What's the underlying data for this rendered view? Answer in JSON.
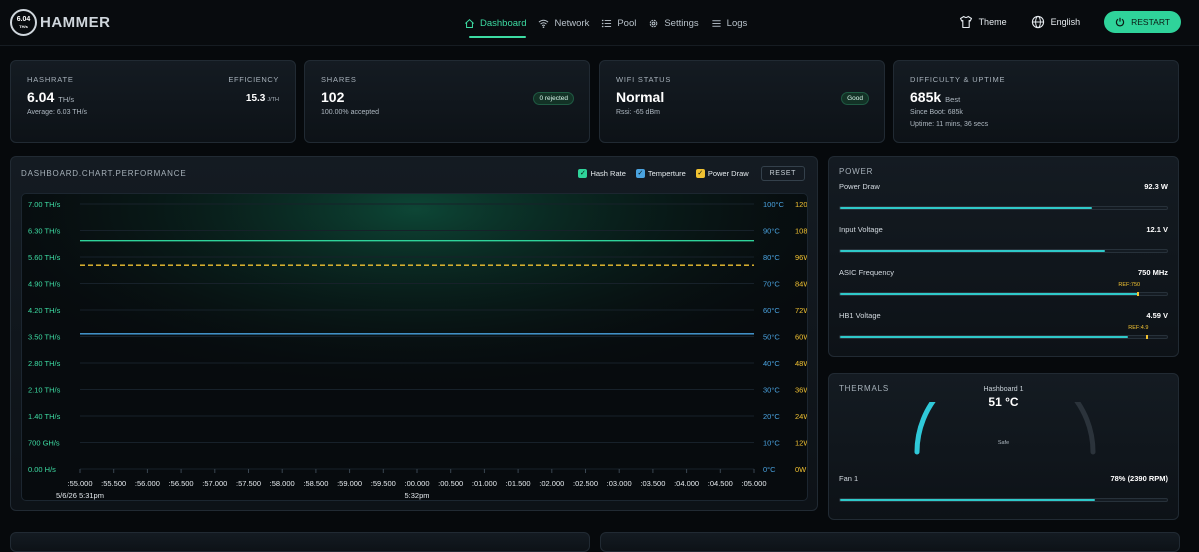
{
  "brand": {
    "name": "HAMMER",
    "badge_value": "6.04",
    "badge_unit": "TH/s"
  },
  "nav": [
    {
      "label": "Dashboard",
      "icon": "home-icon",
      "active": true
    },
    {
      "label": "Network",
      "icon": "wifi-icon",
      "active": false
    },
    {
      "label": "Pool",
      "icon": "list-icon",
      "active": false
    },
    {
      "label": "Settings",
      "icon": "gear-icon",
      "active": false
    },
    {
      "label": "Logs",
      "icon": "menu-icon",
      "active": false
    }
  ],
  "topbar": {
    "theme_label": "Theme",
    "language_label": "English",
    "restart_label": "RESTART"
  },
  "stats": {
    "hashrate": {
      "title": "HASHRATE",
      "value": "6.04",
      "unit": "TH/s",
      "average": "Average: 6.03 TH/s",
      "efficiency_label": "EFFICIENCY",
      "efficiency_value": "15.3",
      "efficiency_unit": "J/TH"
    },
    "shares": {
      "title": "SHARES",
      "value": "102",
      "badge": "0 rejected",
      "sub": "100.00% accepted"
    },
    "wifi": {
      "title": "WIFI STATUS",
      "value": "Normal",
      "badge": "Good",
      "sub": "Rssi: -65 dBm"
    },
    "difficulty": {
      "title": "DIFFICULTY & UPTIME",
      "value": "685k",
      "unit": "Best",
      "since_boot": "Since Boot: 685k",
      "uptime": "Uptime: 11 mins, 36 secs"
    }
  },
  "chart": {
    "title": "DASHBOARD.CHART.PERFORMANCE",
    "legend": [
      {
        "label": "Hash Rate",
        "color": "#2fd39a"
      },
      {
        "label": "Temperture",
        "color": "#4aa3e0"
      },
      {
        "label": "Power Draw",
        "color": "#f1c232"
      }
    ],
    "reset_label": "RESET"
  },
  "chart_data": {
    "type": "line",
    "y_left_ticks": [
      "7.00 TH/s",
      "6.30 TH/s",
      "5.60 TH/s",
      "4.90 TH/s",
      "4.20 TH/s",
      "3.50 TH/s",
      "2.80 TH/s",
      "2.10 TH/s",
      "1.40 TH/s",
      "700 GH/s",
      "0.00 H/s"
    ],
    "y_temp_ticks": [
      "100°C",
      "90°C",
      "80°C",
      "70°C",
      "60°C",
      "50°C",
      "40°C",
      "30°C",
      "20°C",
      "10°C",
      "0°C"
    ],
    "y_power_ticks": [
      "120W",
      "108W",
      "96W",
      "84W",
      "72W",
      "60W",
      "48W",
      "36W",
      "24W",
      "12W",
      "0W"
    ],
    "x_ticks": [
      ":55.000",
      ":55.500",
      ":56.000",
      ":56.500",
      ":57.000",
      ":57.500",
      ":58.000",
      ":58.500",
      ":59.000",
      ":59.500",
      ":00.000",
      ":00.500",
      ":01.000",
      ":01.500",
      ":02.000",
      ":02.500",
      ":03.000",
      ":03.500",
      ":04.000",
      ":04.500",
      ":05.000"
    ],
    "x_date_labels": [
      {
        "at": 0,
        "text": "5/6/26 5:31pm"
      },
      {
        "at": 10,
        "text": "5:32pm"
      }
    ],
    "ylim_hashrate": [
      0,
      7.0
    ],
    "ylim_temp": [
      0,
      100
    ],
    "ylim_power": [
      0,
      120
    ],
    "series": [
      {
        "name": "Hash Rate",
        "axis": "hashrate",
        "values": [
          6.03,
          6.03
        ],
        "style": "solid",
        "color": "#2fd39a"
      },
      {
        "name": "Temperture",
        "axis": "temp",
        "values": [
          51,
          51
        ],
        "style": "solid",
        "color": "#4aa3e0"
      },
      {
        "name": "Power Draw",
        "axis": "power",
        "values": [
          92.3,
          92.3
        ],
        "style": "dashed",
        "color": "#f1c232"
      }
    ]
  },
  "power": {
    "title": "POWER",
    "rows": [
      {
        "label": "Power Draw",
        "value": "92.3 W",
        "fill": 0.77
      },
      {
        "label": "Input Voltage",
        "value": "12.1 V",
        "fill": 0.81
      },
      {
        "label": "ASIC Frequency",
        "value": "750 MHz",
        "fill": 0.91,
        "ref": "REF:750",
        "ref_pos": 0.91
      },
      {
        "label": "HB1 Voltage",
        "value": "4.59 V",
        "fill": 0.88,
        "ref": "REF:4.9",
        "ref_pos": 0.94
      }
    ]
  },
  "thermals": {
    "title": "THERMALS",
    "gauge_label": "Hashboard 1",
    "gauge_value": "51 °C",
    "gauge_status": "Safe",
    "gauge_fill": 0.51,
    "fan_label": "Fan 1",
    "fan_value": "78% (2390 RPM)",
    "fan_fill": 0.78
  }
}
